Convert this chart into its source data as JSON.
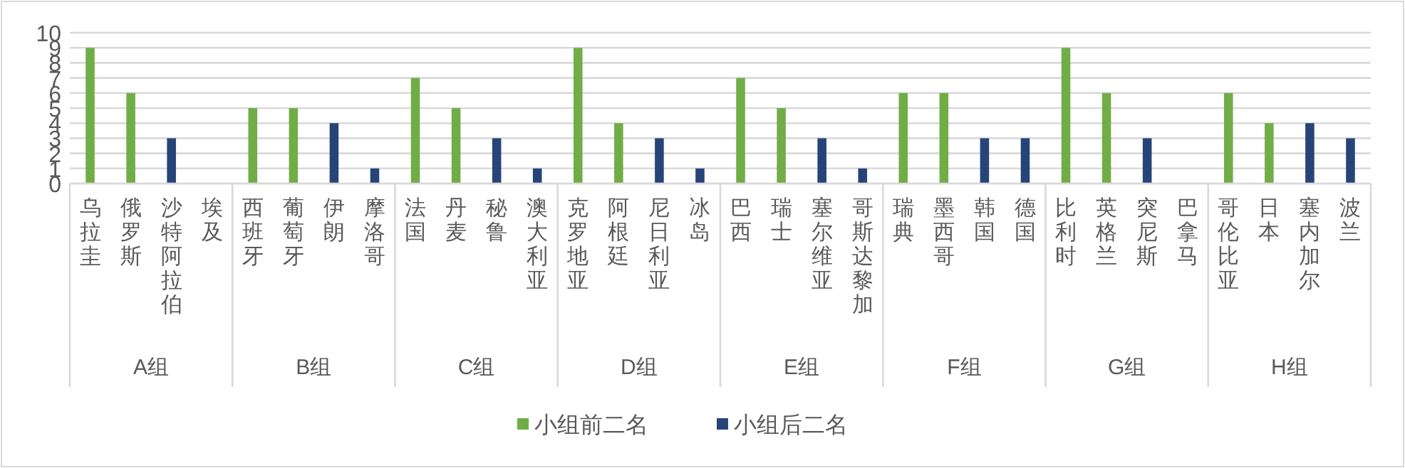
{
  "chart_data": {
    "type": "bar",
    "categories": [
      "乌拉圭",
      "俄罗斯",
      "沙特阿拉伯",
      "埃及",
      "西班牙",
      "葡萄牙",
      "伊朗",
      "摩洛哥",
      "法国",
      "丹麦",
      "秘鲁",
      "澳大利亚",
      "克罗地亚",
      "阿根廷",
      "尼日利亚",
      "冰岛",
      "巴西",
      "瑞士",
      "塞尔维亚",
      "哥斯达黎加",
      "瑞典",
      "墨西哥",
      "韩国",
      "德国",
      "比利时",
      "英格兰",
      "突尼斯",
      "巴拿马",
      "哥伦比亚",
      "日本",
      "塞内加尔",
      "波兰"
    ],
    "annotations": [
      "A组",
      "B组",
      "C组",
      "D组",
      "E组",
      "F组",
      "G组",
      "H组"
    ],
    "series": [
      {
        "name": "小组前二名",
        "color": "#70ad47",
        "values": [
          9,
          6,
          null,
          null,
          5,
          5,
          null,
          null,
          7,
          5,
          null,
          null,
          9,
          4,
          null,
          null,
          7,
          5,
          null,
          null,
          6,
          6,
          null,
          null,
          9,
          6,
          null,
          null,
          6,
          4,
          null,
          null
        ]
      },
      {
        "name": "小组后二名",
        "color": "#264478",
        "values": [
          null,
          null,
          3,
          0,
          null,
          null,
          4,
          1,
          null,
          null,
          3,
          1,
          null,
          null,
          3,
          1,
          null,
          null,
          3,
          1,
          null,
          null,
          3,
          3,
          null,
          null,
          3,
          0,
          null,
          null,
          4,
          3
        ]
      }
    ],
    "ylim": [
      0,
      10
    ],
    "yticks": [
      0,
      1,
      2,
      3,
      4,
      5,
      6,
      7,
      8,
      9,
      10
    ],
    "grid": "y",
    "legend": "bottom"
  }
}
